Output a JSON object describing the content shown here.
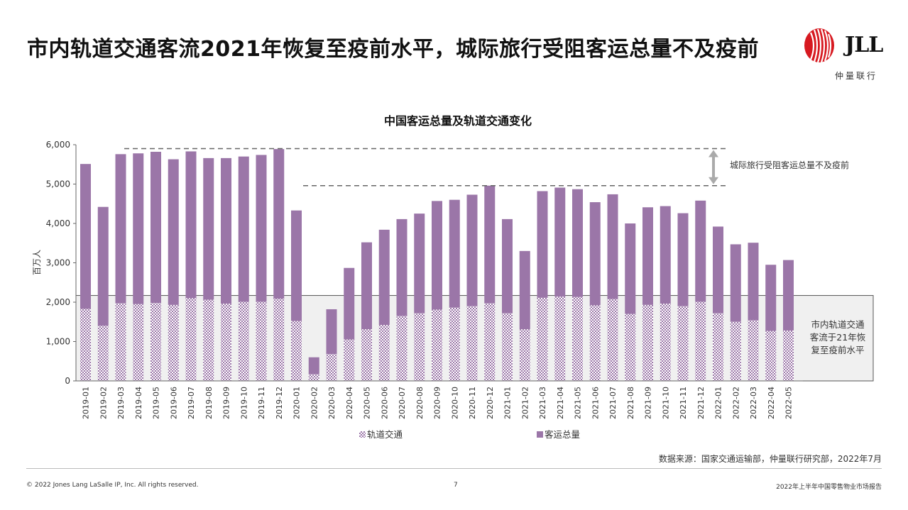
{
  "header": {
    "title": "市内轨道交通客流2021年恢复至疫前水平，城际旅行受阻客运总量不及疫前",
    "logo_text": "JLL",
    "logo_subtext": "仲量联行"
  },
  "chart_data": {
    "type": "bar",
    "title": "中国客运总量及轨道交通变化",
    "ylabel": "百万人",
    "xlabel": "",
    "ylim": [
      0,
      6000
    ],
    "yticks": [
      "0",
      "1,000",
      "2,000",
      "3,000",
      "4,000",
      "5,000",
      "6,000"
    ],
    "grid": false,
    "legend_position": "bottom",
    "categories": [
      "2019-01",
      "2019-02",
      "2019-03",
      "2019-04",
      "2019-05",
      "2019-06",
      "2019-07",
      "2019-08",
      "2019-09",
      "2019-10",
      "2019-11",
      "2019-12",
      "2020-01",
      "2020-02",
      "2020-03",
      "2020-04",
      "2020-05",
      "2020-06",
      "2020-07",
      "2020-08",
      "2020-09",
      "2020-10",
      "2020-11",
      "2020-12",
      "2021-01",
      "2021-02",
      "2021-03",
      "2021-04",
      "2021-05",
      "2021-06",
      "2021-07",
      "2021-08",
      "2021-09",
      "2021-10",
      "2021-11",
      "2021-12",
      "2022-01",
      "2022-02",
      "2022-03",
      "2022-04",
      "2022-05"
    ],
    "series": [
      {
        "name": "轨道交通",
        "color": "#9b76a8",
        "values": [
          1830,
          1400,
          1970,
          1950,
          1980,
          1930,
          2100,
          2060,
          1960,
          2010,
          2010,
          2090,
          1520,
          170,
          680,
          1050,
          1310,
          1420,
          1650,
          1720,
          1810,
          1860,
          1900,
          1970,
          1720,
          1310,
          2110,
          2140,
          2130,
          1920,
          2080,
          1700,
          1930,
          1960,
          1900,
          2010,
          1720,
          1500,
          1540,
          1270,
          1280
        ]
      },
      {
        "name": "客运总量",
        "color": "#9b76a8",
        "values": [
          5510,
          4420,
          5760,
          5780,
          5820,
          5630,
          5830,
          5660,
          5660,
          5700,
          5740,
          5890,
          4330,
          600,
          1820,
          2870,
          3520,
          3840,
          4110,
          4250,
          4570,
          4600,
          4730,
          4960,
          4110,
          3300,
          4820,
          4910,
          4870,
          4540,
          4740,
          4000,
          4410,
          4440,
          4260,
          4580,
          3920,
          3470,
          3510,
          2950,
          3070
        ]
      }
    ],
    "annotations": [
      {
        "text": "城际旅行受阻客运总量不及疫前",
        "ref_lines": [
          5900,
          4960
        ]
      },
      {
        "text": "市内轨道交通客流于21年恢复至疫前水平",
        "lines": [
          "市内轨道交通",
          "客流于21年恢",
          "复至疫前水平"
        ],
        "threshold": 2170
      }
    ]
  },
  "footer": {
    "source": "数据来源：国家交通运输部，仲量联行研究部，2022年7月",
    "copyright": "© 2022 Jones Lang LaSalle IP, Inc. All rights reserved.",
    "page": "7",
    "report": "2022年上半年中国零售物业市场报告"
  }
}
